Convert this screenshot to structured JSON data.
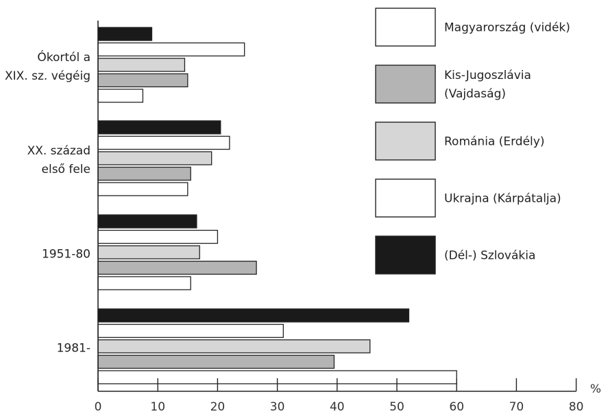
{
  "chart_data": {
    "type": "bar",
    "orientation": "horizontal",
    "categories": [
      [
        "Ókortól a",
        "XIX. sz. végéig"
      ],
      [
        "XX. század",
        "első fele"
      ],
      [
        "1951-80"
      ],
      [
        "1981-"
      ]
    ],
    "series": [
      {
        "name": "(Dél-) Szlovákia",
        "color": "#1a1a1a",
        "values": [
          9,
          20.5,
          16.5,
          52
        ]
      },
      {
        "name": "Magyarország (vidék)",
        "color": "#ffffff",
        "values": [
          24.5,
          22,
          20,
          31
        ]
      },
      {
        "name": "Románia (Erdély)",
        "color": "#d6d6d6",
        "values": [
          14.5,
          19,
          17,
          45.5
        ]
      },
      {
        "name": "Kis-Jugoszlávia (Vajdaság)",
        "color": "#b4b4b4",
        "values": [
          15,
          15.5,
          26.5,
          39.5
        ]
      },
      {
        "name": "Ukrajna (Kárpátalja)",
        "color": "#ffffff",
        "values": [
          7.5,
          15,
          15.5,
          60
        ]
      }
    ],
    "legend_order": [
      "Magyarország (vidék)",
      [
        "Kis-Jugoszlávia",
        "(Vajdaság)"
      ],
      "Románia (Erdély)",
      "Ukrajna (Kárpátalja)",
      "(Dél-) Szlovákia"
    ],
    "xlim": [
      0,
      80
    ],
    "xticks": [
      0,
      10,
      20,
      30,
      40,
      50,
      60,
      70,
      80
    ],
    "xunit": "%",
    "legend_position": "right",
    "grid": false
  }
}
